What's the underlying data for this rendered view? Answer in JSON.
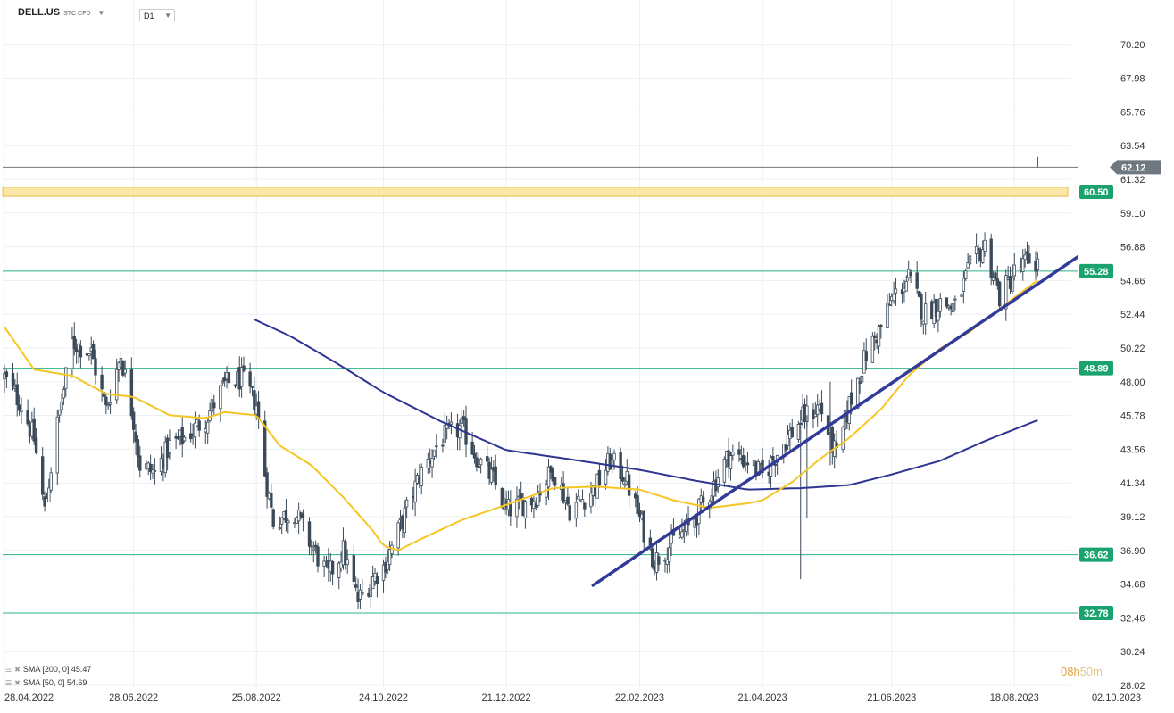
{
  "header": {
    "symbol": "DELL.US",
    "instrument_type": "STC CFD",
    "timeframe": "D1"
  },
  "legend": {
    "sma200": "SMA [200, 0] 45.47",
    "sma50": "SMA [50, 0] 54.69"
  },
  "timer": {
    "hours": "08h",
    "minutes": "50m"
  },
  "colors": {
    "candle": "#3b4a59",
    "sma50": "#f5c623",
    "sma200": "#2e3592",
    "level": "#2db38a",
    "level_badge": "#1aa36e",
    "trendline": "#333b99",
    "price_badge": "#6e7880",
    "zone_fill": "#fbe8a6",
    "zone_border": "#e7b84b"
  },
  "chart_data": {
    "type": "candlestick",
    "y_ticks": [
      "70.20",
      "67.98",
      "65.76",
      "63.54",
      "61.32",
      "59.10",
      "56.88",
      "54.66",
      "52.44",
      "50.22",
      "48.00",
      "45.78",
      "43.56",
      "41.34",
      "39.12",
      "36.90",
      "34.68",
      "32.46",
      "30.24",
      "28.02"
    ],
    "ylim": [
      28.02,
      71.5
    ],
    "x_ticks": [
      "28.04.2022",
      "28.06.2022",
      "25.08.2022",
      "24.10.2022",
      "21.12.2022",
      "22.02.2023",
      "21.04.2023",
      "21.06.2023",
      "18.08.2023",
      "02.10.2023"
    ],
    "x_tick_dates": [
      "2022-04-28",
      "2022-06-28",
      "2022-08-25",
      "2022-10-24",
      "2022-12-21",
      "2023-02-22",
      "2023-04-21",
      "2023-06-21",
      "2023-08-18",
      "2023-10-02"
    ],
    "last_price": "62.12",
    "levels": [
      {
        "label": "55.28",
        "value": 55.28
      },
      {
        "label": "48.89",
        "value": 48.89
      },
      {
        "label": "36.62",
        "value": 36.62
      },
      {
        "label": "32.78",
        "value": 32.78
      }
    ],
    "zone": {
      "label": "60.50",
      "low": 60.2,
      "high": 60.8
    },
    "trendline": {
      "start": [
        "2023-01-31",
        34.6
      ],
      "end": [
        "2023-09-22",
        56.7
      ]
    },
    "close_anchors": [
      [
        "2022-04-28",
        48.3
      ],
      [
        "2022-05-06",
        46.5
      ],
      [
        "2022-05-12",
        44.2
      ],
      [
        "2022-05-17",
        39.5
      ],
      [
        "2022-05-23",
        45.2
      ],
      [
        "2022-05-30",
        50.6
      ],
      [
        "2022-06-08",
        49.9
      ],
      [
        "2022-06-15",
        46.2
      ],
      [
        "2022-06-22",
        49.8
      ],
      [
        "2022-06-28",
        45.5
      ],
      [
        "2022-07-01",
        42.5
      ],
      [
        "2022-07-08",
        42.0
      ],
      [
        "2022-07-15",
        43.8
      ],
      [
        "2022-07-22",
        44.3
      ],
      [
        "2022-08-01",
        45.6
      ],
      [
        "2022-08-10",
        47.8
      ],
      [
        "2022-08-18",
        48.2
      ],
      [
        "2022-08-25",
        46.5
      ],
      [
        "2022-08-29",
        42.0
      ],
      [
        "2022-09-02",
        38.8
      ],
      [
        "2022-09-12",
        39.5
      ],
      [
        "2022-09-20",
        37.2
      ],
      [
        "2022-09-28",
        35.2
      ],
      [
        "2022-10-05",
        36.9
      ],
      [
        "2022-10-12",
        33.6
      ],
      [
        "2022-10-19",
        35.1
      ],
      [
        "2022-10-24",
        35.8
      ],
      [
        "2022-11-01",
        38.5
      ],
      [
        "2022-11-10",
        41.8
      ],
      [
        "2022-11-20",
        44.2
      ],
      [
        "2022-11-30",
        45.0
      ],
      [
        "2022-12-08",
        42.8
      ],
      [
        "2022-12-15",
        41.5
      ],
      [
        "2022-12-21",
        39.5
      ],
      [
        "2023-01-03",
        40.3
      ],
      [
        "2023-01-12",
        42.2
      ],
      [
        "2023-01-20",
        39.6
      ],
      [
        "2023-02-01",
        41.0
      ],
      [
        "2023-02-08",
        42.8
      ],
      [
        "2023-02-15",
        41.8
      ],
      [
        "2023-02-22",
        39.0
      ],
      [
        "2023-03-01",
        36.2
      ],
      [
        "2023-03-10",
        37.5
      ],
      [
        "2023-03-17",
        38.4
      ],
      [
        "2023-03-27",
        40.7
      ],
      [
        "2023-04-05",
        43.2
      ],
      [
        "2023-04-14",
        42.8
      ],
      [
        "2023-04-21",
        41.8
      ],
      [
        "2023-05-01",
        44.0
      ],
      [
        "2023-05-10",
        45.6
      ],
      [
        "2023-05-18",
        46.4
      ],
      [
        "2023-05-26",
        43.0
      ],
      [
        "2023-06-01",
        46.5
      ],
      [
        "2023-06-09",
        49.8
      ],
      [
        "2023-06-16",
        51.6
      ],
      [
        "2023-06-21",
        53.4
      ],
      [
        "2023-06-29",
        54.8
      ],
      [
        "2023-07-06",
        52.5
      ],
      [
        "2023-07-14",
        53.2
      ],
      [
        "2023-07-21",
        52.9
      ],
      [
        "2023-07-28",
        55.5
      ],
      [
        "2023-08-04",
        57.0
      ],
      [
        "2023-08-11",
        53.6
      ],
      [
        "2023-08-18",
        55.2
      ],
      [
        "2023-08-25",
        56.0
      ],
      [
        "2023-08-29",
        55.8
      ]
    ],
    "sma50_anchors": [
      [
        "2022-04-28",
        51.6
      ],
      [
        "2022-05-12",
        48.8
      ],
      [
        "2022-05-30",
        48.4
      ],
      [
        "2022-06-15",
        47.2
      ],
      [
        "2022-06-28",
        47.0
      ],
      [
        "2022-07-15",
        45.8
      ],
      [
        "2022-08-01",
        45.6
      ],
      [
        "2022-08-10",
        46.0
      ],
      [
        "2022-08-25",
        45.8
      ],
      [
        "2022-09-05",
        43.8
      ],
      [
        "2022-09-20",
        42.5
      ],
      [
        "2022-10-05",
        40.4
      ],
      [
        "2022-10-19",
        38.2
      ],
      [
        "2022-10-24",
        37.2
      ],
      [
        "2022-10-31",
        36.9
      ],
      [
        "2022-11-10",
        37.6
      ],
      [
        "2022-11-30",
        38.9
      ],
      [
        "2022-12-21",
        39.9
      ],
      [
        "2023-01-12",
        41.0
      ],
      [
        "2023-02-01",
        41.1
      ],
      [
        "2023-02-22",
        40.9
      ],
      [
        "2023-03-10",
        40.2
      ],
      [
        "2023-03-27",
        39.7
      ],
      [
        "2023-04-14",
        40.0
      ],
      [
        "2023-04-21",
        40.2
      ],
      [
        "2023-05-05",
        41.4
      ],
      [
        "2023-05-18",
        42.9
      ],
      [
        "2023-06-01",
        44.3
      ],
      [
        "2023-06-16",
        46.2
      ],
      [
        "2023-06-29",
        48.4
      ],
      [
        "2023-07-14",
        50.2
      ],
      [
        "2023-07-28",
        51.3
      ],
      [
        "2023-08-11",
        52.8
      ],
      [
        "2023-08-29",
        54.69
      ]
    ],
    "sma200_anchors": [
      [
        "2022-08-24",
        52.1
      ],
      [
        "2022-09-10",
        51.0
      ],
      [
        "2022-10-01",
        49.3
      ],
      [
        "2022-10-24",
        47.3
      ],
      [
        "2022-11-20",
        45.4
      ],
      [
        "2022-12-21",
        43.5
      ],
      [
        "2023-01-20",
        42.9
      ],
      [
        "2023-02-22",
        42.2
      ],
      [
        "2023-03-20",
        41.5
      ],
      [
        "2023-04-14",
        40.9
      ],
      [
        "2023-05-10",
        41.0
      ],
      [
        "2023-06-01",
        41.2
      ],
      [
        "2023-06-21",
        41.9
      ],
      [
        "2023-07-14",
        42.8
      ],
      [
        "2023-08-04",
        44.1
      ],
      [
        "2023-08-29",
        45.47
      ]
    ]
  }
}
